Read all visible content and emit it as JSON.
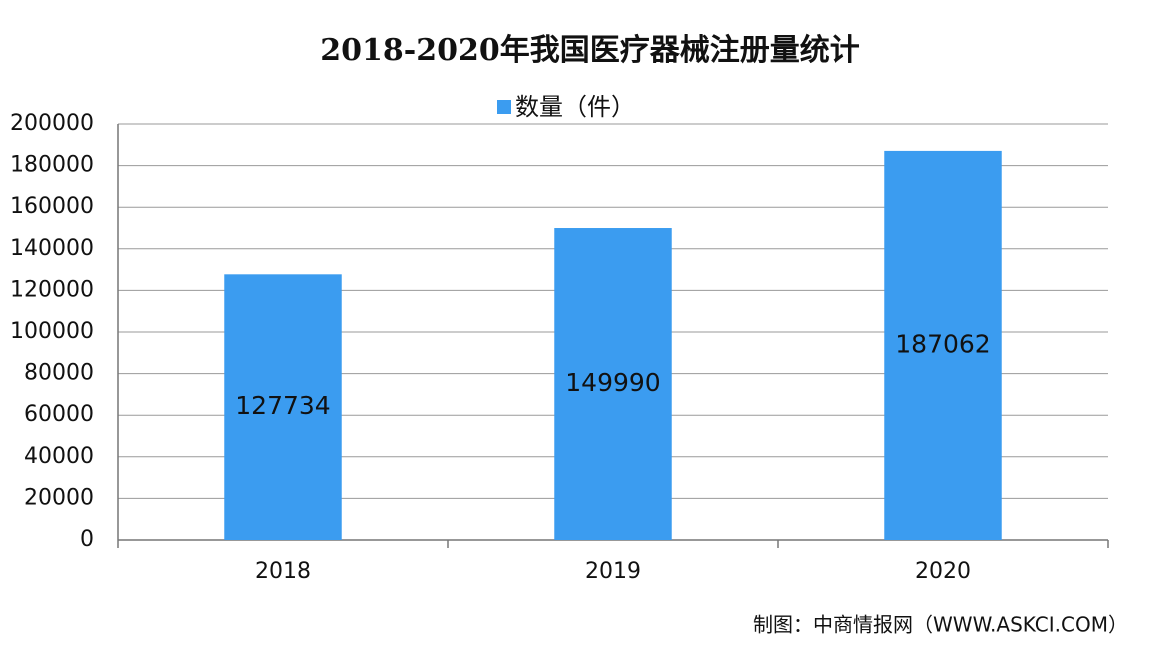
{
  "chart_data": {
    "type": "bar",
    "title": "2018-2020年我国医疗器械注册量统计",
    "categories": [
      "2018",
      "2019",
      "2020"
    ],
    "series": [
      {
        "name": "数量（件）",
        "color": "#3b9cf0",
        "values": [
          127734,
          149990,
          187062
        ]
      }
    ],
    "ylim": [
      0,
      200000
    ],
    "yticks": [
      0,
      20000,
      40000,
      60000,
      80000,
      100000,
      120000,
      140000,
      160000,
      180000,
      200000
    ],
    "grid": true,
    "legend": "top",
    "source": "制图：中商情报网（WWW.ASKCI.COM）"
  }
}
